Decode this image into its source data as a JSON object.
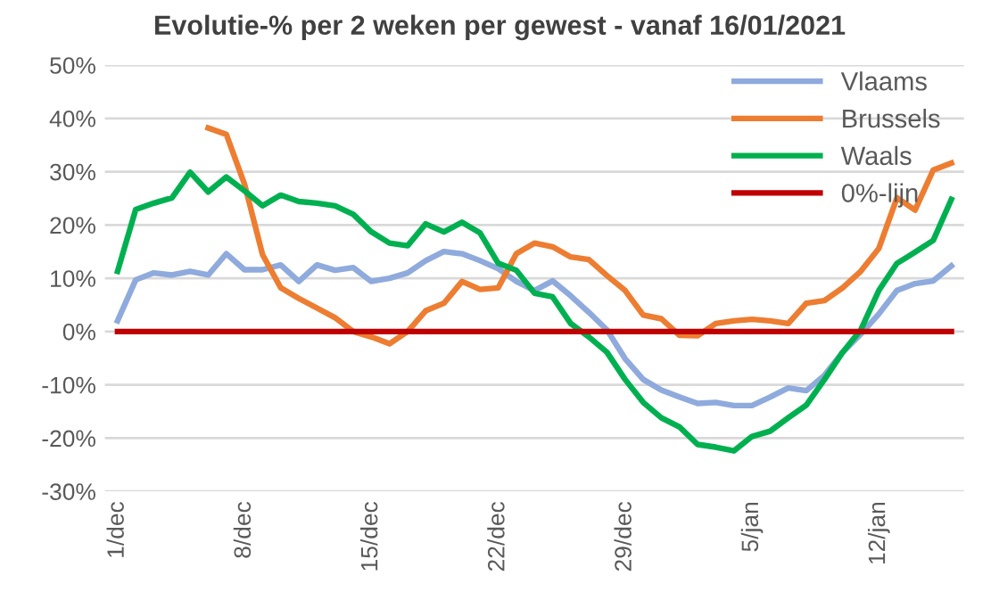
{
  "chart_data": {
    "type": "line",
    "title": "Evolutie-% per 2 weken per gewest - vanaf 16/01/2021",
    "categories": [
      "1/dec",
      null,
      null,
      null,
      null,
      null,
      null,
      "8/dec",
      null,
      null,
      null,
      null,
      null,
      null,
      "15/dec",
      null,
      null,
      null,
      null,
      null,
      null,
      "22/dec",
      null,
      null,
      null,
      null,
      null,
      null,
      "29/dec",
      null,
      null,
      null,
      null,
      null,
      null,
      "5/jan",
      null,
      null,
      null,
      null,
      null,
      null,
      "12/jan",
      null,
      null,
      null,
      null
    ],
    "series": [
      {
        "name": "Vlaams",
        "color": "#8faadc",
        "values": [
          2,
          9.7,
          11,
          10.6,
          11.3,
          10.6,
          14.6,
          11.6,
          11.6,
          12.5,
          9.4,
          12.5,
          11.5,
          12,
          9.4,
          10,
          11,
          13.3,
          15,
          14.6,
          13.3,
          11.8,
          9.4,
          7.7,
          9.5,
          6.7,
          3.6,
          0.3,
          -5.1,
          -9,
          -11,
          -12.3,
          -13.5,
          -13.3,
          -13.9,
          -13.9,
          -12.3,
          -10.6,
          -11.1,
          -8.2,
          -3.9,
          -0.5,
          3.3,
          7.7,
          9,
          9.5,
          12.3
        ]
      },
      {
        "name": "Brussels",
        "color": "#ed7d31",
        "values": [
          null,
          null,
          null,
          null,
          null,
          38.2,
          37,
          27.7,
          14.4,
          8.2,
          6.2,
          4.4,
          2.6,
          0,
          -1,
          -2.3,
          0,
          3.9,
          5.3,
          9.4,
          7.9,
          8.2,
          14.6,
          16.6,
          15.9,
          14,
          13.5,
          10.5,
          7.7,
          3.1,
          2.4,
          -0.7,
          -0.8,
          1.5,
          2,
          2.3,
          2,
          1.5,
          5.3,
          5.8,
          8.2,
          11.3,
          15.6,
          25.1,
          22.8,
          30.3,
          31.6
        ]
      },
      {
        "name": "Waals",
        "color": "#00b050",
        "values": [
          11.3,
          22.9,
          24.1,
          25.1,
          29.9,
          26.2,
          29,
          26.4,
          23.6,
          25.6,
          24.4,
          24.1,
          23.6,
          22,
          18.7,
          16.6,
          16.1,
          20.2,
          18.7,
          20.5,
          18.5,
          12.8,
          11.5,
          7.2,
          6.5,
          1.5,
          -1,
          -3.9,
          -9,
          -13.3,
          -16.2,
          -17.9,
          -21.2,
          -21.7,
          -22.4,
          -19.7,
          -18.7,
          -16.2,
          -13.8,
          -9,
          -3.9,
          0.3,
          7.7,
          12.8,
          14.9,
          17.1,
          24.8
        ]
      },
      {
        "name": "0%-lijn",
        "color": "#c00000",
        "values": [
          0,
          0,
          0,
          0,
          0,
          0,
          0,
          0,
          0,
          0,
          0,
          0,
          0,
          0,
          0,
          0,
          0,
          0,
          0,
          0,
          0,
          0,
          0,
          0,
          0,
          0,
          0,
          0,
          0,
          0,
          0,
          0,
          0,
          0,
          0,
          0,
          0,
          0,
          0,
          0,
          0,
          0,
          0,
          0,
          0,
          0,
          0
        ]
      }
    ],
    "ylim": [
      -30,
      50
    ],
    "yticks": [
      {
        "value": -30,
        "label": "-30%"
      },
      {
        "value": -20,
        "label": "-20%"
      },
      {
        "value": -10,
        "label": "-10%"
      },
      {
        "value": 0,
        "label": "0%"
      },
      {
        "value": 10,
        "label": "10%"
      },
      {
        "value": 20,
        "label": "20%"
      },
      {
        "value": 30,
        "label": "30%"
      },
      {
        "value": 40,
        "label": "40%"
      },
      {
        "value": 50,
        "label": "50%"
      }
    ],
    "grid": "y",
    "legend": "top right",
    "marker": "none",
    "line_style": "solid"
  }
}
